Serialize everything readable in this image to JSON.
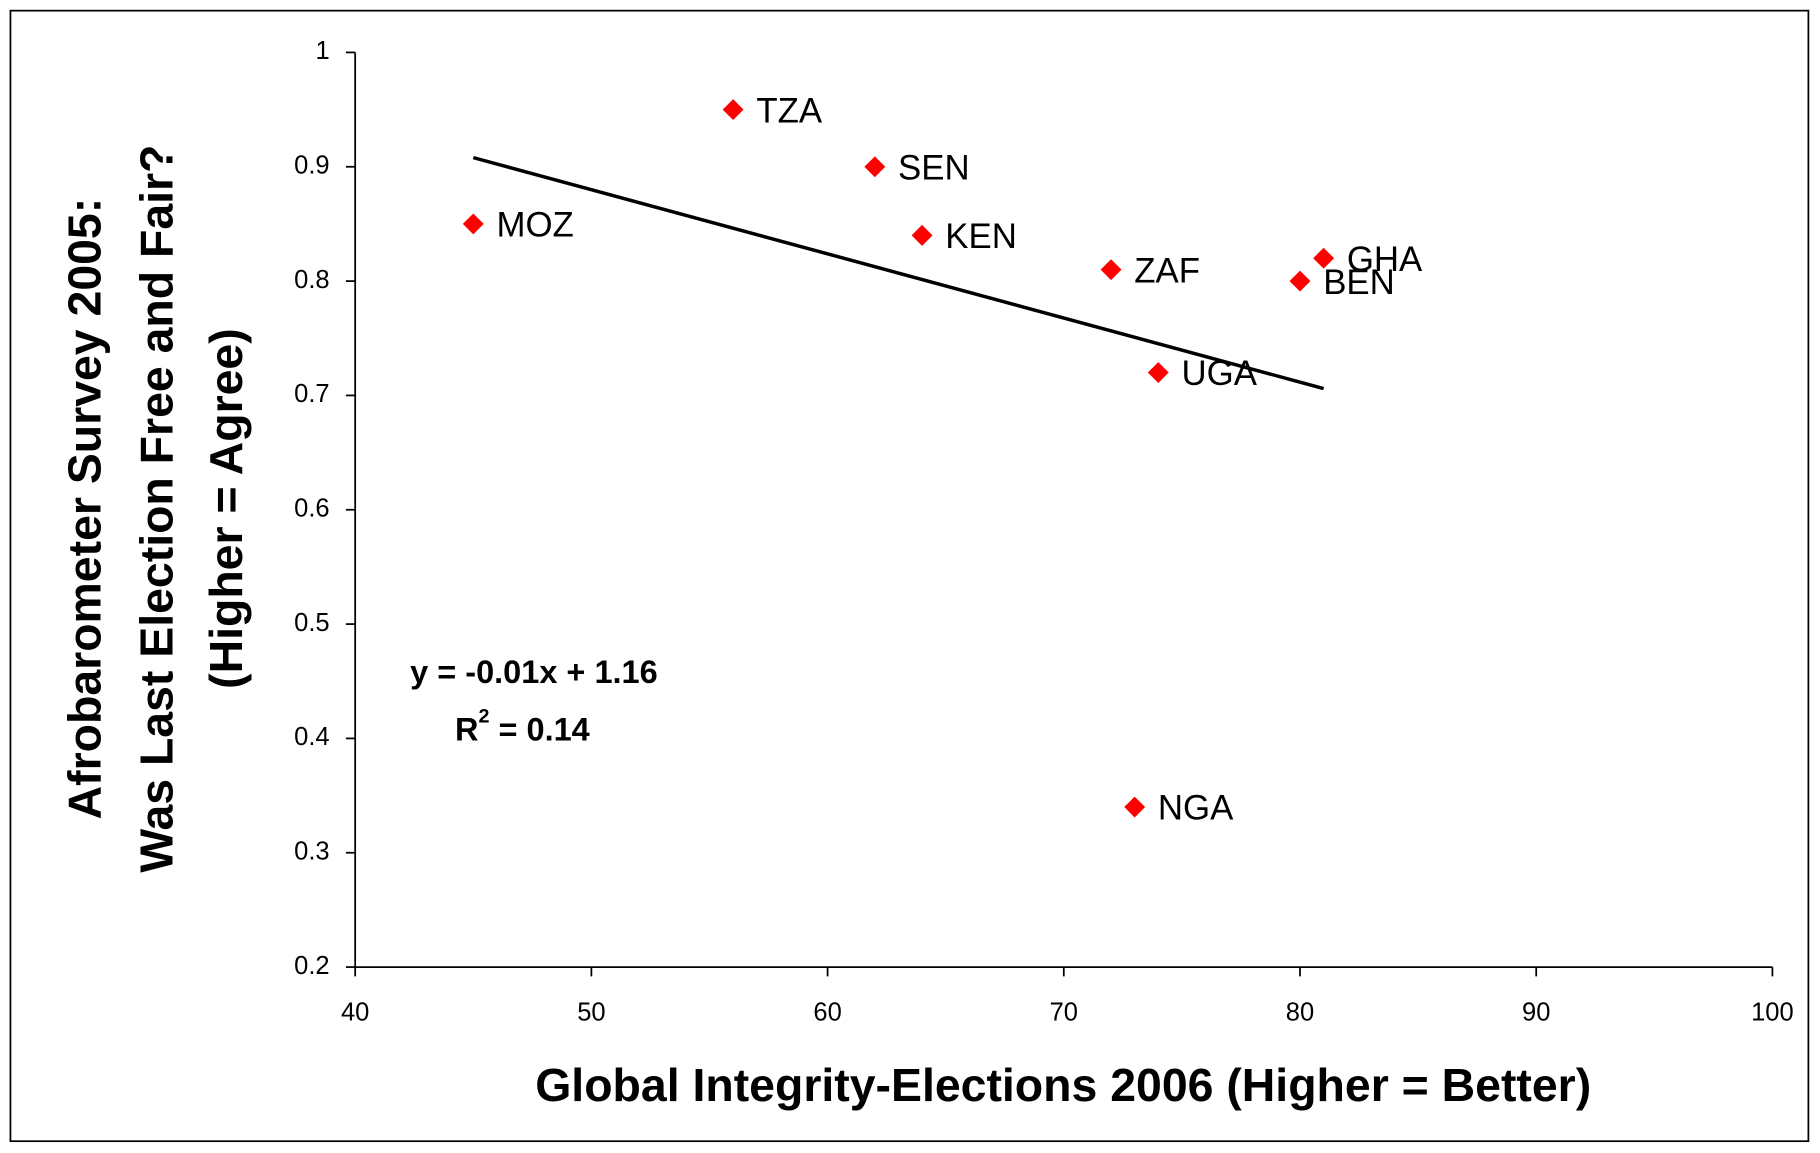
{
  "chart_data": {
    "type": "scatter",
    "xlabel": "Global Integrity-Elections 2006 (Higher = Better)",
    "ylabel": [
      "Afrobarometer Survey 2005:",
      "Was Last Election Free and Fair?",
      "(Higher = Agree)"
    ],
    "xlim": [
      40,
      100
    ],
    "xticks": [
      40,
      50,
      60,
      70,
      80,
      90,
      100
    ],
    "ylim": [
      0.2,
      1
    ],
    "yticks": [
      0.2,
      0.3,
      0.4,
      0.5,
      0.6,
      0.7,
      0.8,
      0.9,
      1
    ],
    "color": "#ff0000",
    "points": [
      {
        "label": "MOZ",
        "x": 45,
        "y": 0.85
      },
      {
        "label": "TZA",
        "x": 56,
        "y": 0.95
      },
      {
        "label": "SEN",
        "x": 62,
        "y": 0.9
      },
      {
        "label": "KEN",
        "x": 64,
        "y": 0.84
      },
      {
        "label": "ZAF",
        "x": 72,
        "y": 0.81
      },
      {
        "label": "GHA",
        "x": 81,
        "y": 0.82
      },
      {
        "label": "BEN",
        "x": 80,
        "y": 0.8
      },
      {
        "label": "UGA",
        "x": 74,
        "y": 0.72
      },
      {
        "label": "NGA",
        "x": 73,
        "y": 0.34
      }
    ],
    "trendline": {
      "x": [
        45,
        81
      ],
      "y": [
        0.908,
        0.706
      ],
      "color": "#000000"
    },
    "equation": "y = -0.01x + 1.16",
    "r2_symbol": "R",
    "r2_superscript": "2",
    "r2_value": " = 0.14"
  }
}
